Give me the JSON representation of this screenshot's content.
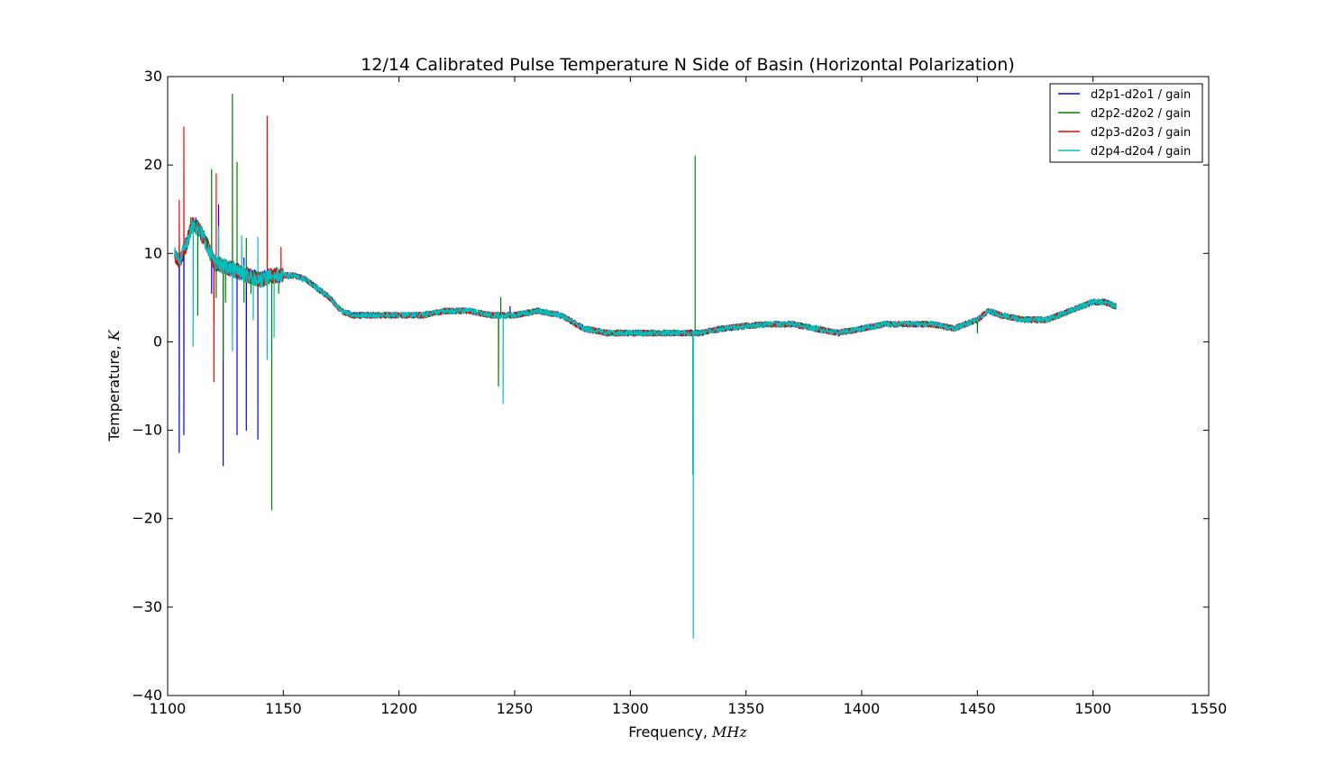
{
  "chart_data": {
    "type": "line",
    "title": "12/14 Calibrated Pulse Temperature N Side of Basin (Horizontal Polarization)",
    "xlabel": "Frequency,",
    "xunit": "MHz",
    "ylabel": "Temperature,",
    "yunit": "K",
    "xlim": [
      1100,
      1550
    ],
    "ylim": [
      -40,
      30
    ],
    "xticks": [
      1100,
      1150,
      1200,
      1250,
      1300,
      1350,
      1400,
      1450,
      1500,
      1550
    ],
    "yticks": [
      -40,
      -30,
      -20,
      -10,
      0,
      10,
      20,
      30
    ],
    "grid": false,
    "legend_position": "top-right",
    "baseline": {
      "x": [
        1103,
        1105,
        1108,
        1111,
        1114,
        1117,
        1120,
        1125,
        1130,
        1135,
        1140,
        1145,
        1150,
        1155,
        1160,
        1165,
        1170,
        1175,
        1180,
        1190,
        1200,
        1210,
        1220,
        1230,
        1240,
        1250,
        1260,
        1270,
        1280,
        1290,
        1300,
        1310,
        1320,
        1330,
        1340,
        1350,
        1360,
        1370,
        1380,
        1390,
        1400,
        1410,
        1420,
        1430,
        1440,
        1450,
        1455,
        1460,
        1470,
        1480,
        1490,
        1495,
        1500,
        1505,
        1510
      ],
      "y": [
        10,
        9,
        11,
        13.5,
        12.5,
        11,
        9,
        8.5,
        8,
        7.5,
        7,
        7.5,
        7.5,
        7.5,
        7,
        6,
        5,
        3.5,
        3,
        3,
        3,
        3,
        3.5,
        3.5,
        3,
        3,
        3.5,
        3,
        1.5,
        1,
        1,
        1,
        1,
        1,
        1.5,
        1.8,
        2,
        2,
        1.5,
        1,
        1.5,
        2,
        2,
        2,
        1.5,
        2.5,
        3.5,
        3,
        2.5,
        2.5,
        3.5,
        4,
        4.5,
        4.5,
        4
      ]
    },
    "series": [
      {
        "name": "d2p1-d2o1 / gain",
        "color": "#0000ff",
        "noise_seed": 11,
        "spikes": [
          [
            1105,
            -12.5
          ],
          [
            1107,
            -10.5
          ],
          [
            1119,
            5.5
          ],
          [
            1122,
            15.5
          ],
          [
            1124,
            -14
          ],
          [
            1130,
            -10.5
          ],
          [
            1133,
            9.5
          ],
          [
            1134,
            -10
          ],
          [
            1139,
            -11
          ],
          [
            1248,
            4
          ],
          [
            1327,
            -10
          ]
        ]
      },
      {
        "name": "d2p2-d2o2 / gain",
        "color": "#008000",
        "noise_seed": 23,
        "spikes": [
          [
            1110,
            14
          ],
          [
            1113,
            3
          ],
          [
            1119,
            19.5
          ],
          [
            1120,
            2.5
          ],
          [
            1121,
            5
          ],
          [
            1124,
            -2
          ],
          [
            1125,
            4.5
          ],
          [
            1128,
            28
          ],
          [
            1130,
            20.3
          ],
          [
            1133,
            4.5
          ],
          [
            1134,
            11.7
          ],
          [
            1136,
            5.5
          ],
          [
            1145,
            -19
          ],
          [
            1148,
            5.5
          ],
          [
            1243,
            -5
          ],
          [
            1244,
            5
          ],
          [
            1327,
            -14.5
          ],
          [
            1328,
            21
          ],
          [
            1450,
            1
          ]
        ]
      },
      {
        "name": "d2p3-d2o3 / gain",
        "color": "#ff0000",
        "noise_seed": 37,
        "spikes": [
          [
            1105,
            16
          ],
          [
            1107,
            24.3
          ],
          [
            1120,
            -4.5
          ],
          [
            1121,
            19
          ],
          [
            1143,
            25.5
          ],
          [
            1149,
            10.7
          ]
        ]
      },
      {
        "name": "d2p4-d2o4 / gain",
        "color": "#00bfbf",
        "noise_seed": 51,
        "spikes": [
          [
            1111,
            -0.5
          ],
          [
            1122,
            13
          ],
          [
            1128,
            -1
          ],
          [
            1132,
            12
          ],
          [
            1137,
            2.5
          ],
          [
            1139,
            11.8
          ],
          [
            1143,
            -2
          ],
          [
            1146,
            0.5
          ],
          [
            1245,
            -7
          ],
          [
            1327,
            -15
          ],
          [
            1327.2,
            -33.5
          ]
        ]
      }
    ]
  }
}
